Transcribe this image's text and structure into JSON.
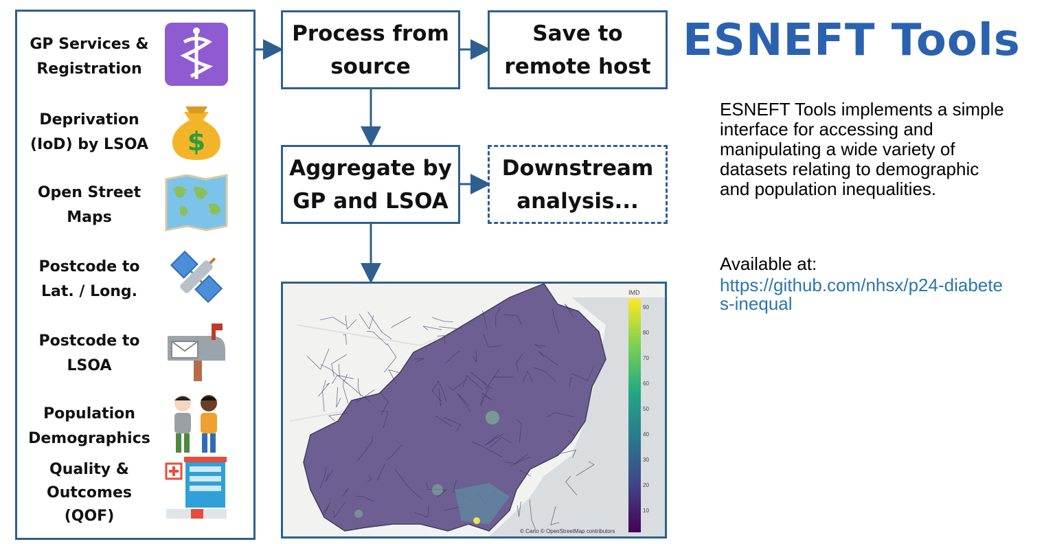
{
  "sources": [
    {
      "label_lines": [
        "GP Services &",
        "Registration"
      ],
      "icon": "medical-caduceus-icon",
      "color": "#8e5bd0"
    },
    {
      "label_lines": [
        "Deprivation",
        "(IoD) by LSOA"
      ],
      "icon": "money-bag-icon",
      "color": "#f2b52a"
    },
    {
      "label_lines": [
        "Open Street",
        "Maps"
      ],
      "icon": "world-map-icon",
      "color": "#5aaee0"
    },
    {
      "label_lines": [
        "Postcode to",
        "Lat. / Long."
      ],
      "icon": "satellite-icon",
      "color": "#4b8ed9"
    },
    {
      "label_lines": [
        "Postcode to",
        "LSOA"
      ],
      "icon": "mailbox-icon",
      "color": "#9aa4ad"
    },
    {
      "label_lines": [
        "Population",
        "Demographics"
      ],
      "icon": "people-icon",
      "color": "#f0a030"
    },
    {
      "label_lines": [
        "Quality &",
        "Outcomes",
        "(QOF)"
      ],
      "icon": "hospital-icon",
      "color": "#2fa0d8"
    }
  ],
  "steps": {
    "process": [
      "Process from",
      "source"
    ],
    "save": [
      "Save to",
      "remote host"
    ],
    "aggregate": [
      "Aggregate by",
      "GP and LSOA"
    ],
    "downstream": [
      "Downstream",
      "analysis..."
    ]
  },
  "title": "ESNEFT Tools",
  "description": "ESNEFT Tools implements a simple interface for accessing and manipulating a wide variety of datasets relating to demographic and population inequalities.",
  "available_label": "Available at:",
  "link": "https://github.com/nhsx/p24-diabetes-inequal",
  "map": {
    "colorbar_title": "IMD",
    "colorbar_ticks": [
      "90",
      "80",
      "70",
      "60",
      "50",
      "40",
      "30",
      "20",
      "10"
    ],
    "attribution": "© Carto © OpenStreetMap contributors"
  },
  "colors": {
    "border": "#2e5f8f",
    "title": "#2b62b0",
    "link": "#2a76a8"
  }
}
